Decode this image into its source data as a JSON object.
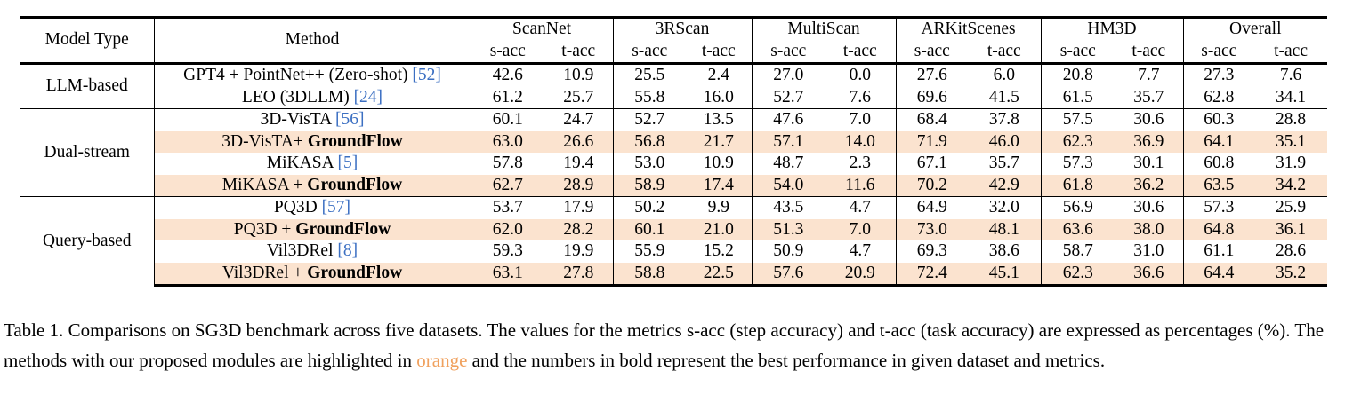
{
  "table": {
    "header": {
      "model_type": "Model Type",
      "method": "Method",
      "datasets": [
        "ScanNet",
        "3RScan",
        "MultiScan",
        "ARKitScenes",
        "HM3D",
        "Overall"
      ],
      "metrics": [
        "s-acc",
        "t-acc"
      ]
    },
    "groups": [
      {
        "type": "LLM-based",
        "rows": [
          {
            "method": "GPT4 + PointNet++ (Zero-shot) ",
            "suffix": "",
            "cite": "[52]",
            "highlight": false,
            "values": [
              "42.6",
              "10.9",
              "25.5",
              "2.4",
              "27.0",
              "0.0",
              "27.6",
              "6.0",
              "20.8",
              "7.7",
              "27.3",
              "7.6"
            ],
            "bold": []
          },
          {
            "method": "LEO (3DLLM) ",
            "suffix": "",
            "cite": "[24]",
            "highlight": false,
            "values": [
              "61.2",
              "25.7",
              "55.8",
              "16.0",
              "52.7",
              "7.6",
              "69.6",
              "41.5",
              "61.5",
              "35.7",
              "62.8",
              "34.1"
            ],
            "bold": []
          }
        ]
      },
      {
        "type": "Dual-stream",
        "rows": [
          {
            "method": "3D-VisTA ",
            "suffix": "",
            "cite": "[56]",
            "highlight": false,
            "values": [
              "60.1",
              "24.7",
              "52.7",
              "13.5",
              "47.6",
              "7.0",
              "68.4",
              "37.8",
              "57.5",
              "30.6",
              "60.3",
              "28.8"
            ],
            "bold": []
          },
          {
            "method": "3D-VisTA+ ",
            "suffix": "GroundFlow",
            "cite": "",
            "highlight": true,
            "values": [
              "63.0",
              "26.6",
              "56.8",
              "21.7",
              "57.1",
              "14.0",
              "71.9",
              "46.0",
              "62.3",
              "36.9",
              "64.1",
              "35.1"
            ],
            "bold": []
          },
          {
            "method": "MiKASA ",
            "suffix": "",
            "cite": "[5]",
            "highlight": false,
            "values": [
              "57.8",
              "19.4",
              "53.0",
              "10.9",
              "48.7",
              "2.3",
              "67.1",
              "35.7",
              "57.3",
              "30.1",
              "60.8",
              "31.9"
            ],
            "bold": []
          },
          {
            "method": "MiKASA + ",
            "suffix": "GroundFlow",
            "cite": "",
            "highlight": true,
            "values": [
              "62.7",
              "28.9",
              "58.9",
              "17.4",
              "54.0",
              "11.6",
              "70.2",
              "42.9",
              "61.8",
              "36.2",
              "63.5",
              "34.2"
            ],
            "bold": [
              1
            ]
          }
        ]
      },
      {
        "type": "Query-based",
        "rows": [
          {
            "method": "PQ3D ",
            "suffix": "",
            "cite": "[57]",
            "highlight": false,
            "values": [
              "53.7",
              "17.9",
              "50.2",
              "9.9",
              "43.5",
              "4.7",
              "64.9",
              "32.0",
              "56.9",
              "30.6",
              "57.3",
              "25.9"
            ],
            "bold": []
          },
          {
            "method": "PQ3D + ",
            "suffix": "GroundFlow",
            "cite": "",
            "highlight": true,
            "values": [
              "62.0",
              "28.2",
              "60.1",
              "21.0",
              "51.3",
              "7.0",
              "73.0",
              "48.1",
              "63.6",
              "38.0",
              "64.8",
              "36.1"
            ],
            "bold": [
              2,
              6,
              7,
              8,
              9,
              10,
              11
            ]
          },
          {
            "method": "Vil3DRel ",
            "suffix": "",
            "cite": "[8]",
            "highlight": false,
            "values": [
              "59.3",
              "19.9",
              "55.9",
              "15.2",
              "50.9",
              "4.7",
              "69.3",
              "38.6",
              "58.7",
              "31.0",
              "61.1",
              "28.6"
            ],
            "bold": []
          },
          {
            "method": "Vil3DRel + ",
            "suffix": "GroundFlow",
            "cite": "",
            "highlight": true,
            "values": [
              "63.1",
              "27.8",
              "58.8",
              "22.5",
              "57.6",
              "20.9",
              "72.4",
              "45.1",
              "62.3",
              "36.6",
              "64.4",
              "35.2"
            ],
            "bold": [
              0,
              3,
              4,
              5
            ]
          }
        ]
      }
    ]
  },
  "caption": {
    "before": "Table 1. Comparisons on SG3D benchmark across five datasets. The values for the metrics s-acc (step accuracy) and t-acc (task accuracy) are expressed as percentages (%). The methods with our proposed modules are highlighted in ",
    "highlight_word": "orange",
    "after": " and the numbers in bold represent the best performance in given dataset and metrics."
  },
  "highlight_color": "#fbe3cf",
  "orange_text_color": "#f0a15e",
  "cite_color": "#3b6fc2"
}
